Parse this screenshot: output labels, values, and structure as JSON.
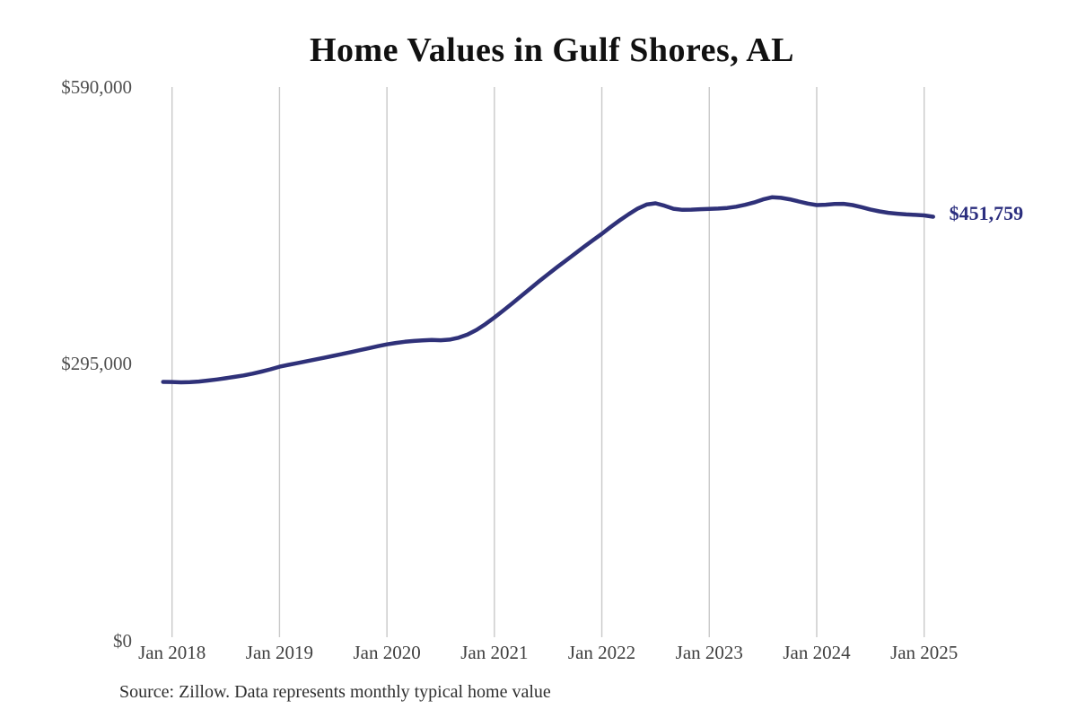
{
  "title": "Home Values in Gulf Shores, AL",
  "source_note": "Source: Zillow. Data represents monthly typical home value",
  "end_label": "$451,759",
  "palette": {
    "line": "#2f3179",
    "end_label": "#2b2e7e",
    "gridline": "#c9c9c9",
    "title_text": "#111111",
    "axis_text": "#4f4f4f",
    "background": "#ffffff"
  },
  "chart_data": {
    "type": "line",
    "title": "Home Values in Gulf Shores, AL",
    "xlabel": "",
    "ylabel": "",
    "ylim": [
      0,
      590000
    ],
    "y_ticks": [
      0,
      295000,
      590000
    ],
    "y_tick_labels": [
      "$0",
      "$295,000",
      "$590,000"
    ],
    "x_tick_labels": [
      "Jan 2018",
      "Jan 2019",
      "Jan 2020",
      "Jan 2021",
      "Jan 2022",
      "Jan 2023",
      "Jan 2024",
      "Jan 2025"
    ],
    "grid": "vertical-only",
    "legend": "none",
    "line_color": "#2f3179",
    "gridline_color": "#c9c9c9",
    "final_value": 451759,
    "final_value_label": "$451,759",
    "x_start": "2017-12",
    "x_end": "2025-02",
    "frequency": "monthly",
    "series": [
      {
        "name": "Typical home value",
        "monthly_values": [
          275800,
          275700,
          275300,
          275500,
          276200,
          277200,
          278400,
          279700,
          281100,
          282700,
          284600,
          286800,
          289200,
          291900,
          293900,
          295800,
          297700,
          299600,
          301500,
          303500,
          305500,
          307500,
          309600,
          311700,
          313800,
          315800,
          317300,
          318500,
          319400,
          320100,
          320400,
          320200,
          320800,
          322800,
          326200,
          331200,
          337400,
          344400,
          351800,
          359500,
          367300,
          375200,
          383000,
          390600,
          398000,
          405200,
          412400,
          419600,
          426700,
          433600,
          441000,
          448000,
          454500,
          460500,
          464800,
          466100,
          463500,
          460300,
          459100,
          459300,
          459800,
          460200,
          460500,
          461200,
          462500,
          464500,
          467000,
          470200,
          472500,
          472000,
          470300,
          468000,
          465800,
          464200,
          464600,
          465400,
          465600,
          464200,
          462000,
          459500,
          457500,
          456000,
          455000,
          454300,
          453800,
          453200,
          451759
        ]
      }
    ]
  }
}
